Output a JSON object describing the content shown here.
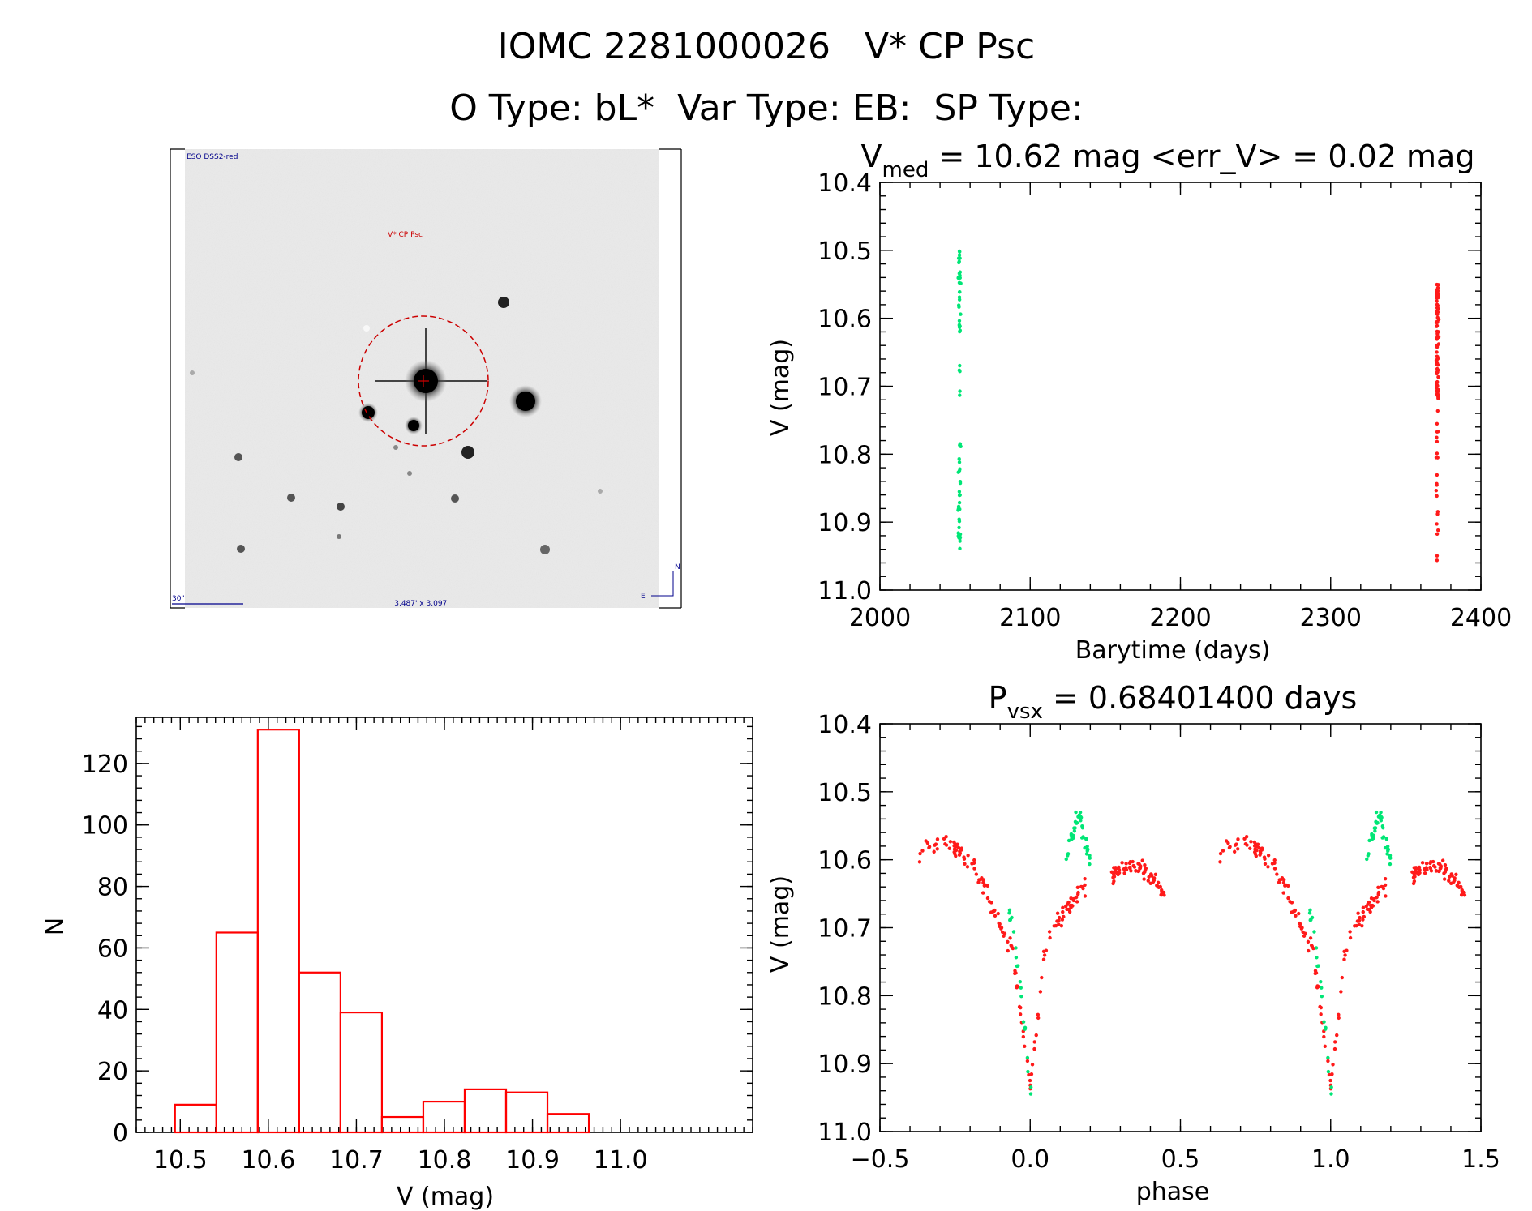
{
  "header": {
    "title_line1": "IOMC 2281000026   V* CP Psc",
    "title_line2": "O Type: bL*  Var Type: EB:  SP Type:"
  },
  "cutout": {
    "survey_label": "ESO DSS2-red",
    "object_label": "V* CP Psc",
    "scale_label": "30\"",
    "size_label": "3.487' x 3.097'",
    "north_label": "N",
    "east_label": "E"
  },
  "colors": {
    "group1": "#00e676",
    "group2": "#ff1a1a",
    "histogram": "#ff0000",
    "circle": "#cc0000",
    "label_blue": "#00008b"
  },
  "chart_data": [
    {
      "id": "lightcurve",
      "type": "scatter",
      "title_parts": {
        "main": "V",
        "sub": "med",
        "rest": " = 10.62 mag <err_V> = 0.02 mag"
      },
      "xlabel": "Barytime (days)",
      "ylabel": "V (mag)",
      "xlim": [
        2000,
        2400
      ],
      "ylim": [
        10.4,
        11.0
      ],
      "y_inverted": true,
      "x_ticks": [
        "2000",
        "2100",
        "2200",
        "2300",
        "2400"
      ],
      "y_ticks": [
        "10.4",
        "10.5",
        "10.6",
        "10.7",
        "10.8",
        "10.9",
        "11.0"
      ],
      "series": [
        {
          "color": "#00e676",
          "x_center": 2053,
          "x_spread": 1.2,
          "y_segments": [
            [
              10.5,
              10.62,
              30
            ],
            [
              10.66,
              10.72,
              5
            ],
            [
              10.78,
              10.94,
              32
            ]
          ]
        },
        {
          "color": "#ff1a1a",
          "x_center": 2371,
          "x_spread": 1.2,
          "y_segments": [
            [
              10.55,
              10.72,
              90
            ],
            [
              10.72,
              10.96,
              22
            ]
          ]
        }
      ]
    },
    {
      "id": "histogram",
      "type": "bar",
      "xlabel": "V (mag)",
      "ylabel": "N",
      "xlim": [
        10.45,
        11.15
      ],
      "ylim": [
        0,
        135
      ],
      "x_ticks": [
        "10.5",
        "10.6",
        "10.7",
        "10.8",
        "10.9",
        "11.0"
      ],
      "y_ticks": [
        "0",
        "20",
        "40",
        "60",
        "80",
        "100",
        "120"
      ],
      "bin_width": 0.047,
      "bins": [
        {
          "x0": 10.494,
          "count": 9
        },
        {
          "x0": 10.541,
          "count": 65
        },
        {
          "x0": 10.588,
          "count": 131
        },
        {
          "x0": 10.635,
          "count": 52
        },
        {
          "x0": 10.682,
          "count": 39
        },
        {
          "x0": 10.729,
          "count": 5
        },
        {
          "x0": 10.776,
          "count": 10
        },
        {
          "x0": 10.823,
          "count": 14
        },
        {
          "x0": 10.87,
          "count": 13
        },
        {
          "x0": 10.917,
          "count": 6
        }
      ]
    },
    {
      "id": "phased",
      "type": "scatter",
      "title_parts": {
        "main": "P",
        "sub": "vsx",
        "rest": " = 0.68401400 days"
      },
      "xlabel": "phase",
      "ylabel": "V (mag)",
      "xlim": [
        -0.5,
        1.5
      ],
      "ylim": [
        10.4,
        11.0
      ],
      "y_inverted": true,
      "x_ticks": [
        "−0.5",
        "0.0",
        "0.5",
        "1.0",
        "1.5"
      ],
      "y_ticks": [
        "10.4",
        "10.5",
        "10.6",
        "10.7",
        "10.8",
        "10.9",
        "11.0"
      ],
      "period_repeat": 1.0,
      "red_curve": [
        [
          -0.38,
          10.59
        ],
        [
          -0.33,
          10.58
        ],
        [
          -0.28,
          10.575
        ],
        [
          -0.23,
          10.59
        ],
        [
          -0.19,
          10.61
        ],
        [
          -0.15,
          10.64
        ],
        [
          -0.12,
          10.68
        ],
        [
          -0.09,
          10.71
        ],
        [
          -0.06,
          10.73
        ],
        [
          -0.03,
          10.83
        ],
        [
          -0.01,
          10.9
        ],
        [
          0.0,
          10.93
        ],
        [
          0.02,
          10.85
        ],
        [
          0.04,
          10.76
        ],
        [
          0.06,
          10.71
        ],
        [
          0.09,
          10.69
        ],
        [
          0.12,
          10.675
        ],
        [
          0.15,
          10.655
        ],
        [
          0.18,
          10.64
        ],
        [
          0.27,
          10.625
        ],
        [
          0.32,
          10.61
        ],
        [
          0.37,
          10.61
        ],
        [
          0.41,
          10.63
        ],
        [
          0.45,
          10.655
        ]
      ],
      "green_curve": [
        [
          -0.07,
          10.68
        ],
        [
          -0.05,
          10.72
        ],
        [
          -0.03,
          10.8
        ],
        [
          -0.015,
          10.86
        ],
        [
          -0.005,
          10.92
        ],
        [
          0.005,
          10.94
        ],
        [
          0.12,
          10.59
        ],
        [
          0.14,
          10.56
        ],
        [
          0.16,
          10.53
        ],
        [
          0.18,
          10.57
        ],
        [
          0.2,
          10.6
        ]
      ]
    }
  ]
}
